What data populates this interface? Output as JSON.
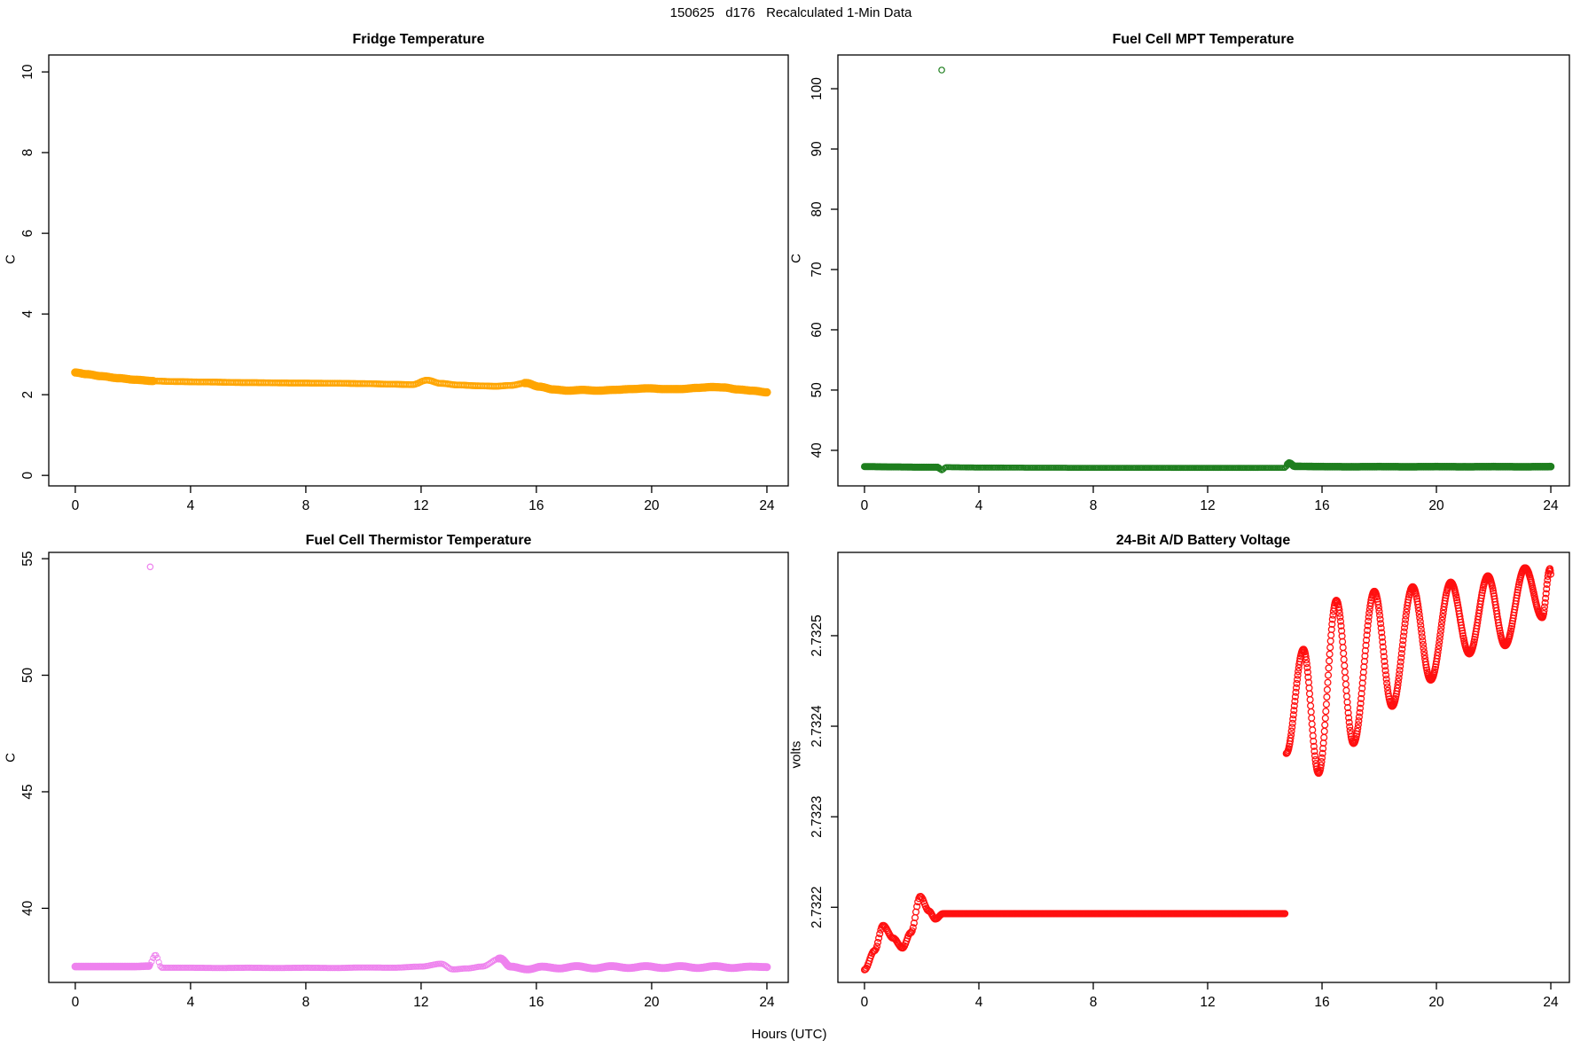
{
  "figure": {
    "title": "150625   d176   Recalculated 1-Min Data",
    "xlabel": "Hours (UTC)",
    "background": "#ffffff",
    "box_color": "#000000"
  },
  "chart_data": [
    {
      "id": "fridge",
      "type": "scatter",
      "title": "Fridge Temperature",
      "ylabel": "C",
      "marker": "open-circle",
      "color": "#FFA500",
      "xlim": [
        -0.92,
        24.74
      ],
      "ylim": [
        -0.26,
        10.42
      ],
      "xticks": [
        0,
        4,
        8,
        12,
        16,
        20,
        24
      ],
      "yticks": [
        0,
        2,
        4,
        6,
        8,
        10
      ],
      "ytick_labels": [
        "0",
        "2",
        "4",
        "6",
        "8",
        "10"
      ],
      "runs": [
        {
          "from": 0,
          "to": 24,
          "step_min": 3
        }
      ],
      "segments": [
        {
          "from": 0,
          "to": 2.7,
          "r": 3.3,
          "sw": 2.8
        },
        {
          "from": 2.7,
          "to": 15.6,
          "r": 3.3,
          "sw": 1.1
        },
        {
          "from": 15.6,
          "to": 24,
          "r": 3.3,
          "sw": 2.8
        }
      ],
      "keypoints": [
        [
          0,
          2.55
        ],
        [
          0.4,
          2.51
        ],
        [
          0.9,
          2.46
        ],
        [
          1.5,
          2.41
        ],
        [
          2.1,
          2.37
        ],
        [
          2.7,
          2.34
        ],
        [
          3.5,
          2.325
        ],
        [
          4.5,
          2.315
        ],
        [
          6,
          2.3
        ],
        [
          7.5,
          2.29
        ],
        [
          9,
          2.285
        ],
        [
          10,
          2.275
        ],
        [
          11,
          2.26
        ],
        [
          11.7,
          2.25
        ],
        [
          12.2,
          2.36
        ],
        [
          12.7,
          2.28
        ],
        [
          13.3,
          2.24
        ],
        [
          14,
          2.22
        ],
        [
          14.6,
          2.21
        ],
        [
          15.1,
          2.23
        ],
        [
          15.65,
          2.29
        ],
        [
          16.1,
          2.2
        ],
        [
          16.6,
          2.13
        ],
        [
          17.1,
          2.1
        ],
        [
          17.6,
          2.12
        ],
        [
          18.1,
          2.1
        ],
        [
          18.7,
          2.12
        ],
        [
          19.3,
          2.14
        ],
        [
          19.9,
          2.16
        ],
        [
          20.4,
          2.14
        ],
        [
          21,
          2.14
        ],
        [
          21.6,
          2.17
        ],
        [
          22.1,
          2.19
        ],
        [
          22.5,
          2.18
        ],
        [
          23,
          2.13
        ],
        [
          23.5,
          2.1
        ],
        [
          24,
          2.06
        ]
      ],
      "outliers": []
    },
    {
      "id": "mpt",
      "type": "scatter",
      "title": "Fuel Cell MPT Temperature",
      "ylabel": "C",
      "marker": "open-circle",
      "color": "#1e7e1e",
      "xlim": [
        -0.93,
        24.65
      ],
      "ylim": [
        34.1,
        105.6
      ],
      "xticks": [
        0,
        4,
        8,
        12,
        16,
        20,
        24
      ],
      "yticks": [
        40,
        50,
        60,
        70,
        80,
        90,
        100
      ],
      "ytick_labels": [
        "40",
        "50",
        "60",
        "70",
        "80",
        "90",
        "100"
      ],
      "runs": [
        {
          "from": 0,
          "to": 24,
          "step_min": 3
        }
      ],
      "segments": [
        {
          "from": 0,
          "to": 2.6,
          "r": 2.8,
          "sw": 2.4
        },
        {
          "from": 2.6,
          "to": 14.8,
          "r": 2.8,
          "sw": 1.2
        },
        {
          "from": 14.8,
          "to": 24,
          "r": 3.0,
          "sw": 2.6
        }
      ],
      "keypoints": [
        [
          0,
          37.3
        ],
        [
          1,
          37.25
        ],
        [
          2,
          37.2
        ],
        [
          2.55,
          37.2
        ],
        [
          2.7,
          36.7
        ],
        [
          2.85,
          37.2
        ],
        [
          4,
          37.15
        ],
        [
          6,
          37.12
        ],
        [
          8,
          37.1
        ],
        [
          10,
          37.1
        ],
        [
          12,
          37.08
        ],
        [
          13,
          37.08
        ],
        [
          14.2,
          37.1
        ],
        [
          14.7,
          37.1
        ],
        [
          14.85,
          37.9
        ],
        [
          15.05,
          37.35
        ],
        [
          16,
          37.3
        ],
        [
          17,
          37.28
        ],
        [
          18,
          37.3
        ],
        [
          19,
          37.28
        ],
        [
          20,
          37.3
        ],
        [
          21,
          37.28
        ],
        [
          22,
          37.3
        ],
        [
          23,
          37.28
        ],
        [
          24,
          37.3
        ]
      ],
      "outliers": [
        {
          "x": 2.7,
          "y": 103.1
        }
      ]
    },
    {
      "id": "thermistor",
      "type": "scatter",
      "title": "Fuel Cell Thermistor Temperature",
      "ylabel": "C",
      "marker": "open-circle",
      "color": "#EE82EE",
      "xlim": [
        -0.92,
        24.74
      ],
      "ylim": [
        36.82,
        55.27
      ],
      "xticks": [
        0,
        4,
        8,
        12,
        16,
        20,
        24
      ],
      "yticks": [
        40,
        45,
        50,
        55
      ],
      "ytick_labels": [
        "40",
        "45",
        "50",
        "55"
      ],
      "runs": [
        {
          "from": 0,
          "to": 24,
          "step_min": 3
        }
      ],
      "segments": [
        {
          "from": 0,
          "to": 2.55,
          "r": 3.0,
          "sw": 2.6
        },
        {
          "from": 2.55,
          "to": 14.7,
          "r": 3.0,
          "sw": 1.0
        },
        {
          "from": 14.7,
          "to": 24,
          "r": 3.2,
          "sw": 2.6
        }
      ],
      "keypoints": [
        [
          0,
          37.5
        ],
        [
          1,
          37.5
        ],
        [
          2,
          37.5
        ],
        [
          2.55,
          37.52
        ],
        [
          2.78,
          38.0
        ],
        [
          3.0,
          37.45
        ],
        [
          4,
          37.45
        ],
        [
          5,
          37.44
        ],
        [
          6,
          37.45
        ],
        [
          7,
          37.44
        ],
        [
          8,
          37.45
        ],
        [
          9,
          37.44
        ],
        [
          10,
          37.46
        ],
        [
          11,
          37.45
        ],
        [
          12,
          37.5
        ],
        [
          12.7,
          37.62
        ],
        [
          13.1,
          37.38
        ],
        [
          13.6,
          37.42
        ],
        [
          14.1,
          37.5
        ],
        [
          14.75,
          37.85
        ],
        [
          15.1,
          37.5
        ],
        [
          15.7,
          37.38
        ],
        [
          16.2,
          37.5
        ],
        [
          16.8,
          37.42
        ],
        [
          17.4,
          37.52
        ],
        [
          18,
          37.42
        ],
        [
          18.6,
          37.52
        ],
        [
          19.2,
          37.44
        ],
        [
          19.8,
          37.52
        ],
        [
          20.4,
          37.44
        ],
        [
          21,
          37.52
        ],
        [
          21.6,
          37.44
        ],
        [
          22.2,
          37.52
        ],
        [
          22.8,
          37.44
        ],
        [
          23.4,
          37.5
        ],
        [
          24,
          37.48
        ]
      ],
      "outliers": [
        {
          "x": 2.6,
          "y": 54.65
        }
      ]
    },
    {
      "id": "battery",
      "type": "scatter",
      "title": "24-Bit A/D Battery Voltage",
      "ylabel": "volts",
      "marker": "open-circle",
      "color": "#ff1010",
      "xlim": [
        -0.93,
        24.65
      ],
      "ylim": [
        2.732117,
        2.732592
      ],
      "xticks": [
        0,
        4,
        8,
        12,
        16,
        20,
        24
      ],
      "yticks": [
        2.7322,
        2.7323,
        2.7324,
        2.7325
      ],
      "ytick_labels": [
        "2.7322",
        "2.7323",
        "2.7324",
        "2.7325"
      ],
      "runs": [
        {
          "from": 0,
          "to": 14.73,
          "step_min": 2
        },
        {
          "from": 14.75,
          "to": 24,
          "step_min": 1
        }
      ],
      "segments": [
        {
          "from": 0,
          "to": 24,
          "r": 3.4,
          "sw": 1.3
        }
      ],
      "keypoints": [
        [
          0,
          2.732131
        ],
        [
          0.35,
          2.732152
        ],
        [
          0.65,
          2.73218
        ],
        [
          1.0,
          2.732166
        ],
        [
          1.33,
          2.732155
        ],
        [
          1.62,
          2.732172
        ],
        [
          1.95,
          2.732212
        ],
        [
          2.25,
          2.732196
        ],
        [
          2.48,
          2.732187
        ],
        [
          2.75,
          2.732193
        ],
        [
          14.73,
          2.732193
        ],
        [
          14.75,
          2.73237
        ],
        [
          15.35,
          2.732485
        ],
        [
          15.88,
          2.732348
        ],
        [
          16.5,
          2.732539
        ],
        [
          17.1,
          2.732381
        ],
        [
          17.83,
          2.732549
        ],
        [
          18.45,
          2.732422
        ],
        [
          19.17,
          2.732554
        ],
        [
          19.8,
          2.732451
        ],
        [
          20.5,
          2.732559
        ],
        [
          21.15,
          2.73248
        ],
        [
          21.8,
          2.732566
        ],
        [
          22.4,
          2.732489
        ],
        [
          23.1,
          2.732575
        ],
        [
          23.7,
          2.73252
        ],
        [
          23.97,
          2.732574
        ],
        [
          24.0,
          2.732568
        ]
      ],
      "outliers": []
    }
  ]
}
